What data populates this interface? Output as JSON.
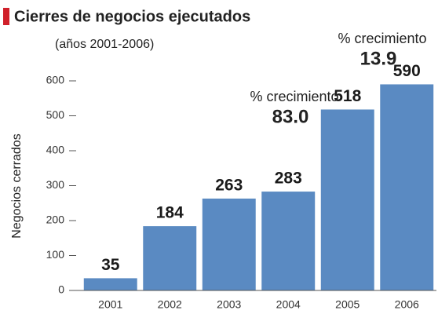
{
  "chart_data": {
    "type": "bar",
    "title": "Cierres de negocios ejecutados",
    "subtitle": "(años 2001-2006)",
    "y_label": "Negocios cerrados",
    "categories": [
      "2001",
      "2002",
      "2003",
      "2004",
      "2005",
      "2006"
    ],
    "values": [
      35,
      184,
      263,
      283,
      518,
      590
    ],
    "color": "#5a8ac2",
    "ylim": [
      0,
      600
    ],
    "yticks": [
      0,
      100,
      200,
      300,
      400,
      500,
      600
    ],
    "annotations": [
      {
        "label": "% crecimiento",
        "value": "83.0"
      },
      {
        "label": "% crecimiento",
        "value": "13.9"
      }
    ]
  }
}
